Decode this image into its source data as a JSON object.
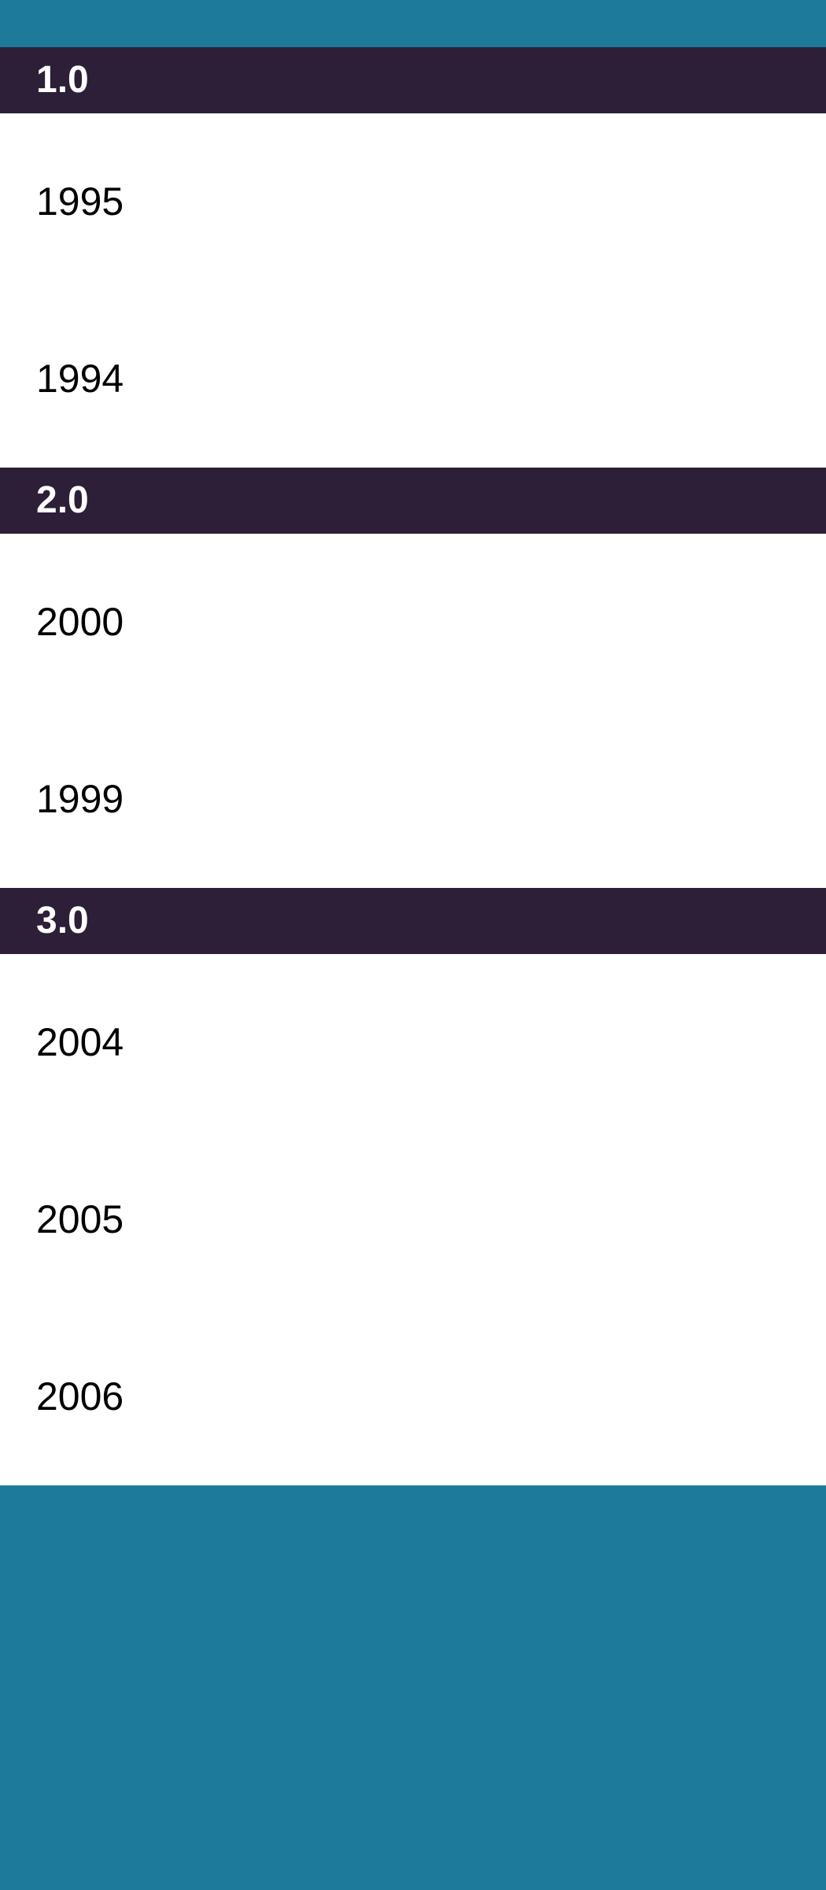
{
  "colors": {
    "app_background": "#1d7a99",
    "section_header_background": "#2c1f37",
    "section_header_text": "#ffffff",
    "row_background": "#ffffff",
    "row_text": "#000000"
  },
  "sections": [
    {
      "title": "1.0",
      "items": [
        "1995",
        "1994"
      ]
    },
    {
      "title": "2.0",
      "items": [
        "2000",
        "1999"
      ]
    },
    {
      "title": "3.0",
      "items": [
        "2004",
        "2005",
        "2006"
      ]
    }
  ]
}
